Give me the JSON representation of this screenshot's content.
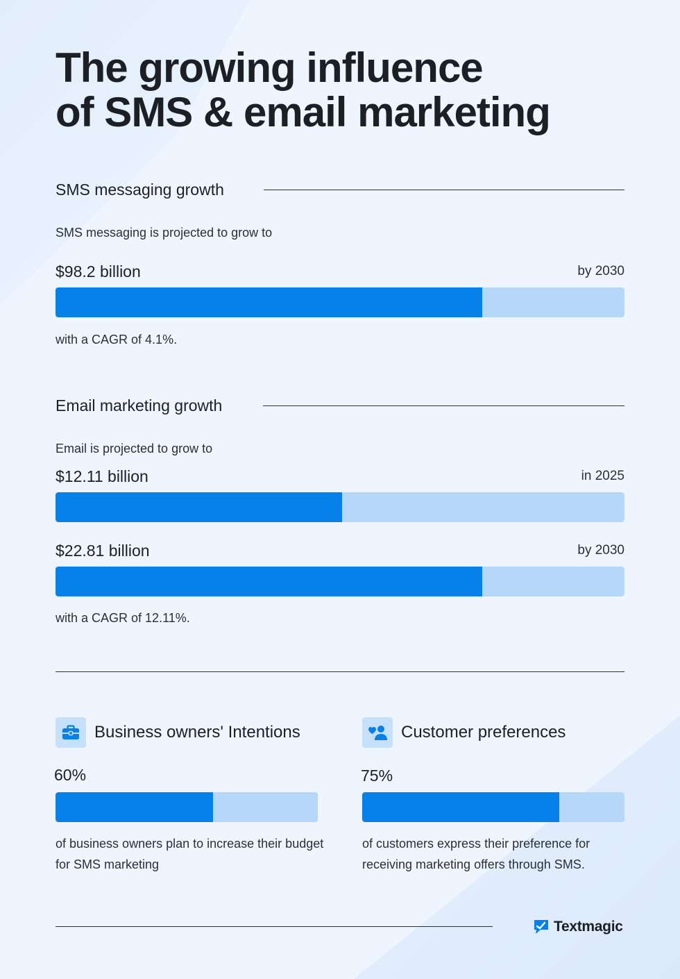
{
  "title": {
    "line1": "The growing influence",
    "line2": "of SMS & email marketing"
  },
  "sms": {
    "heading": "SMS messaging growth",
    "intro": "SMS messaging is projected to grow to",
    "amount": "$98.2 billion",
    "when": "by 2030",
    "bar_percent": 75,
    "cagr_text": "with a CAGR of 4.1%."
  },
  "email": {
    "heading": "Email marketing growth",
    "intro": "Email is projected to grow to",
    "rows": [
      {
        "amount": "$12.11 billion",
        "when": "in 2025",
        "bar_percent": 50.4
      },
      {
        "amount": "$22.81 billion",
        "when": "by 2030",
        "bar_percent": 75
      }
    ],
    "cagr_text": "with a CAGR of 12.11%."
  },
  "cards": [
    {
      "icon": "briefcase-icon",
      "heading": "Business owners' Intentions",
      "value": "60%",
      "bar_percent": 60,
      "desc": "of business owners plan to increase their budget for SMS marketing"
    },
    {
      "icon": "user-heart-icon",
      "heading": "Customer preferences",
      "value": "75%",
      "bar_percent": 75,
      "desc": "of customers express their preference for receiving marketing offers through SMS."
    }
  ],
  "brand": {
    "name": "Textmagic",
    "icon": "textmagic-logo-icon"
  },
  "colors": {
    "bar_fill": "#0580e8",
    "bar_track": "#b6d8f8",
    "background": "#eef5fe",
    "text": "#1c1f24"
  }
}
